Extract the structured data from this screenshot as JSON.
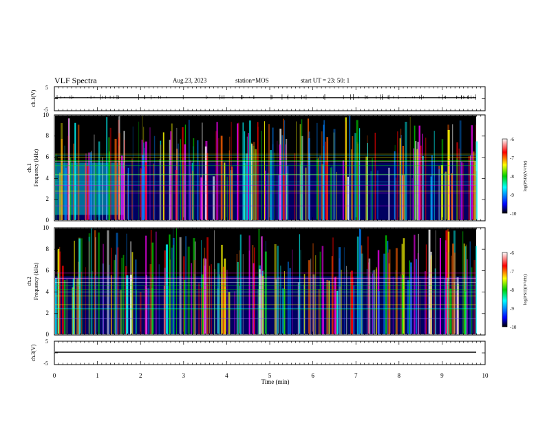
{
  "header": {
    "title": "VLF Spectra",
    "date": "Aug.23, 2023",
    "station": "station=MOS",
    "start": "start  UT =   23: 50: 1"
  },
  "panels": {
    "ch1": {
      "ylabel": "ch.1(V)",
      "ticks": [
        "5",
        "-5"
      ]
    },
    "spec1": {
      "ylabel_top": "ch.1",
      "ylabel_bottom": "Frequency (kHz)",
      "ticks": [
        "0",
        "2",
        "4",
        "6",
        "8",
        "10"
      ]
    },
    "spec2": {
      "ylabel_top": "ch.2",
      "ylabel_bottom": "Frequency (kHz)",
      "ticks": [
        "0",
        "2",
        "4",
        "6",
        "8",
        "10"
      ]
    },
    "ch3": {
      "ylabel": "ch.3(V)",
      "ticks": [
        "5",
        "-5"
      ]
    }
  },
  "xaxis": {
    "label": "Time (min)",
    "ticks": [
      "0",
      "1",
      "2",
      "3",
      "4",
      "5",
      "6",
      "7",
      "8",
      "9",
      "10"
    ]
  },
  "colorbar": {
    "label": "log(PSD)(V²/Hz)",
    "ticks": [
      "-6",
      "-7",
      "-8",
      "-9",
      "-10"
    ]
  },
  "colors": {
    "black": "#000000",
    "blue": "#0000ff",
    "green": "#00d000",
    "red": "#ff0000",
    "white": "#ffffff"
  },
  "chart_data": {
    "type": "heatmap",
    "title": "VLF Spectra",
    "x": {
      "label": "Time (min)",
      "range": [
        0,
        10
      ]
    },
    "y": {
      "label": "Frequency (kHz)",
      "range": [
        0,
        10
      ]
    },
    "colorscale": {
      "label": "log(PSD)(V²/Hz)",
      "range": [
        -10,
        -6
      ]
    },
    "waveform_panels": [
      {
        "name": "ch.1(V)",
        "yrange": [
          -5,
          5
        ]
      },
      {
        "name": "ch.3(V)",
        "yrange": [
          -5,
          5
        ]
      }
    ],
    "spectrogram_panels": [
      "ch.1",
      "ch.2"
    ]
  }
}
